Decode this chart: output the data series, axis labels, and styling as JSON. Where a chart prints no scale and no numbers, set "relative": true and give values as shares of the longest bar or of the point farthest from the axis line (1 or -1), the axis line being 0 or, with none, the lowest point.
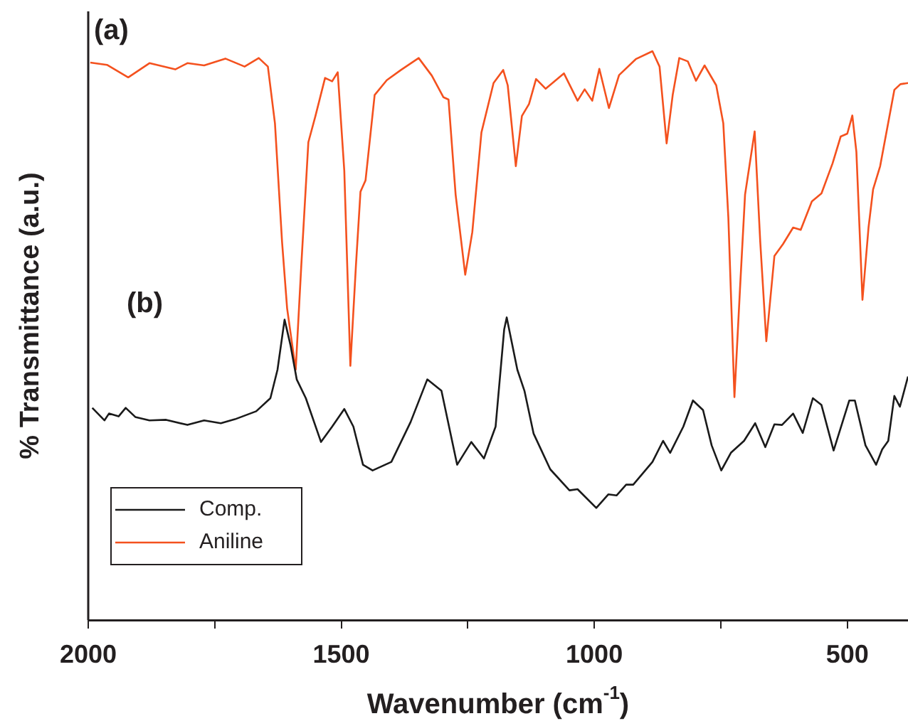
{
  "chart_data": {
    "type": "line",
    "relative": true,
    "xlabel": "Wavenumber (cm$^{-1}$)",
    "ylabel": "% Transmittance (a.u.)",
    "xlim": [
      2000,
      380
    ],
    "xticks": [
      2000,
      {
        "value": 1750,
        "label": null
      },
      1500,
      {
        "value": 1250,
        "label": null
      },
      1000,
      {
        "value": 750,
        "label": null
      },
      500
    ],
    "grid": false,
    "legend": "bottom left",
    "marker": "none",
    "line_style": "solid",
    "annotations": [
      "(a)",
      "(b)"
    ],
    "series": [
      {
        "name": "Comp.",
        "color": "#1a1a1a",
        "x": [
          1992,
          1968,
          1959,
          1940,
          1926,
          1907,
          1879,
          1846,
          1804,
          1771,
          1738,
          1710,
          1668,
          1640,
          1626,
          1612,
          1600,
          1588,
          1570,
          1540,
          1518,
          1494,
          1476,
          1457,
          1438,
          1401,
          1363,
          1330,
          1302,
          1271,
          1243,
          1218,
          1195,
          1178,
          1173,
          1152,
          1138,
          1120,
          1087,
          1049,
          1033,
          996,
          972,
          956,
          937,
          923,
          885,
          864,
          850,
          824,
          805,
          785,
          768,
          749,
          730,
          704,
          682,
          662,
          644,
          629,
          607,
          588,
          568,
          551,
          527,
          496,
          485,
          464,
          443,
          431,
          419,
          407,
          396,
          380
        ],
        "values": [
          0.373,
          0.351,
          0.363,
          0.358,
          0.373,
          0.357,
          0.351,
          0.352,
          0.343,
          0.351,
          0.346,
          0.353,
          0.367,
          0.39,
          0.44,
          0.528,
          0.482,
          0.423,
          0.39,
          0.313,
          0.34,
          0.371,
          0.34,
          0.273,
          0.263,
          0.278,
          0.348,
          0.423,
          0.403,
          0.273,
          0.313,
          0.284,
          0.34,
          0.511,
          0.532,
          0.44,
          0.403,
          0.328,
          0.265,
          0.228,
          0.23,
          0.197,
          0.221,
          0.219,
          0.238,
          0.238,
          0.278,
          0.315,
          0.294,
          0.34,
          0.386,
          0.369,
          0.307,
          0.263,
          0.294,
          0.315,
          0.346,
          0.304,
          0.344,
          0.343,
          0.363,
          0.329,
          0.39,
          0.378,
          0.298,
          0.386,
          0.386,
          0.307,
          0.273,
          0.3,
          0.315,
          0.394,
          0.375,
          0.428
        ]
      },
      {
        "name": "Aniline",
        "color": "#f4511e",
        "x": [
          1996,
          1963,
          1921,
          1879,
          1828,
          1804,
          1771,
          1729,
          1691,
          1663,
          1645,
          1631,
          1617,
          1607,
          1590,
          1579,
          1565,
          1551,
          1532,
          1518,
          1507,
          1494,
          1482,
          1471,
          1462,
          1452,
          1434,
          1410,
          1382,
          1347,
          1321,
          1298,
          1288,
          1274,
          1255,
          1241,
          1223,
          1199,
          1180,
          1171,
          1155,
          1143,
          1129,
          1115,
          1096,
          1060,
          1033,
          1019,
          1004,
          990,
          971,
          951,
          918,
          885,
          871,
          857,
          845,
          832,
          815,
          799,
          782,
          759,
          745,
          735,
          723,
          712,
          702,
          683,
          672,
          660,
          644,
          627,
          607,
          592,
          570,
          551,
          529,
          513,
          500,
          490,
          482,
          470,
          458,
          449,
          435,
          407,
          395,
          380
        ],
        "values": [
          0.98,
          0.976,
          0.954,
          0.979,
          0.968,
          0.979,
          0.975,
          0.987,
          0.973,
          0.988,
          0.973,
          0.873,
          0.665,
          0.548,
          0.44,
          0.623,
          0.84,
          0.886,
          0.953,
          0.947,
          0.963,
          0.79,
          0.447,
          0.623,
          0.753,
          0.773,
          0.923,
          0.949,
          0.967,
          0.988,
          0.957,
          0.919,
          0.915,
          0.748,
          0.607,
          0.682,
          0.857,
          0.944,
          0.967,
          0.94,
          0.798,
          0.886,
          0.907,
          0.951,
          0.934,
          0.961,
          0.913,
          0.933,
          0.913,
          0.969,
          0.9,
          0.958,
          0.986,
          1.0,
          0.973,
          0.838,
          0.923,
          0.988,
          0.982,
          0.948,
          0.975,
          0.94,
          0.873,
          0.707,
          0.392,
          0.582,
          0.748,
          0.859,
          0.665,
          0.49,
          0.64,
          0.661,
          0.69,
          0.686,
          0.736,
          0.75,
          0.803,
          0.85,
          0.855,
          0.887,
          0.823,
          0.563,
          0.69,
          0.757,
          0.798,
          0.932,
          0.942,
          0.944
        ]
      }
    ]
  }
}
